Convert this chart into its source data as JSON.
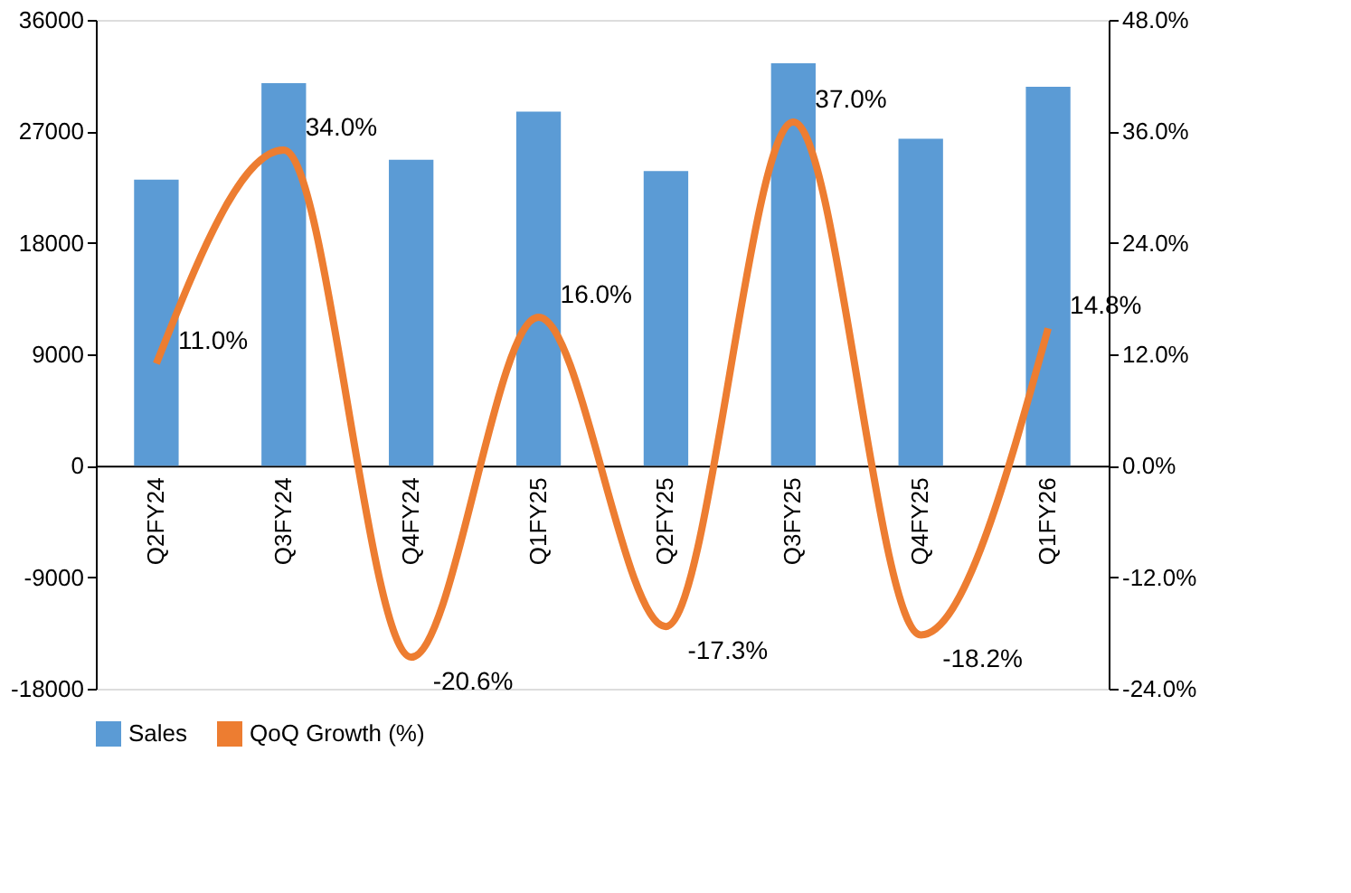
{
  "chart_data": {
    "type": "bar",
    "categories": [
      "Q2FY24",
      "Q3FY24",
      "Q4FY24",
      "Q1FY25",
      "Q2FY25",
      "Q3FY25",
      "Q4FY25",
      "Q1FY26"
    ],
    "series": [
      {
        "name": "Sales",
        "color": "#5b9bd5",
        "values": [
          23100,
          30900,
          24700,
          28600,
          23800,
          32500,
          26400,
          30600
        ]
      },
      {
        "name": "QoQ Growth (%)",
        "type": "line",
        "axis": "y2",
        "color": "#ed7d31",
        "values": [
          11.0,
          34.0,
          -20.6,
          16.0,
          -17.3,
          37.0,
          -18.2,
          14.8
        ],
        "value_labels": [
          "11.0%",
          "34.0%",
          "-20.6%",
          "16.0%",
          "-17.3%",
          "37.0%",
          "-18.2%",
          "14.8%"
        ]
      }
    ],
    "ylim": [
      -18000,
      36000
    ],
    "yticks": [
      -18000,
      -9000,
      0,
      9000,
      18000,
      27000,
      36000
    ],
    "y2lim": [
      -24,
      48
    ],
    "y2ticks": [
      {
        "value": -24,
        "label": "-24.0%"
      },
      {
        "value": -12,
        "label": "-12.0%"
      },
      {
        "value": 0,
        "label": "0.0%"
      },
      {
        "value": 12,
        "label": "12.0%"
      },
      {
        "value": 24,
        "label": "24.0%"
      },
      {
        "value": 36,
        "label": "36.0%"
      },
      {
        "value": 48,
        "label": "48.0%"
      }
    ],
    "grid": false,
    "legend": "bottom",
    "marker": "none",
    "line_style": "solid"
  }
}
